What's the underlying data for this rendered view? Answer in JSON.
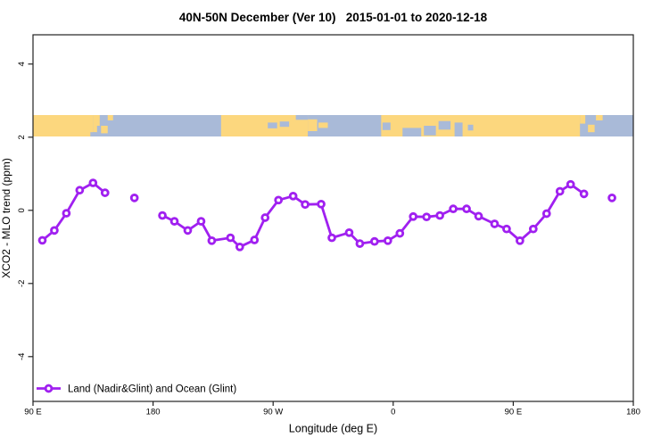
{
  "title": "40N-50N December (Ver 10)   2015-01-01 to 2020-12-18",
  "colors": {
    "series_purple": "#A020F0",
    "map_land": "#FCD77E",
    "map_ocean": "#A9BAD8",
    "axis": "#222222",
    "background": "#ffffff"
  },
  "chart_data": {
    "type": "line",
    "title": "40N-50N December (Ver 10)   2015-01-01 to 2020-12-18",
    "xlabel": "Longitude (deg E)",
    "ylabel": "XCO2 - MLO trend (ppm)",
    "x_axis": {
      "tick_labels": [
        "90 E",
        "180",
        "90 W",
        "0",
        "90 E",
        "180"
      ],
      "tick_offsets_deg": [
        0,
        90,
        180,
        270,
        360,
        450
      ],
      "note": "longitude axis wraps eastward: 90E to 180 to 90W to 0 to 90E to 180"
    },
    "y_axis": {
      "ticks": [
        -4,
        -2,
        0,
        2,
        4
      ],
      "range": [
        -5.2,
        4.8
      ],
      "grid": false
    },
    "legend": {
      "label": "Land (Nadir&Glint) and Ocean (Glint)",
      "position": "bottom-left"
    },
    "series": [
      {
        "name": "Land (Nadir&Glint) and Ocean (Glint)",
        "marker": "open-circle",
        "segments": [
          [
            [
              7,
              -0.82
            ],
            [
              16,
              -0.55
            ],
            [
              25,
              -0.08
            ],
            [
              35,
              0.55
            ],
            [
              45,
              0.75
            ],
            [
              54,
              0.48
            ]
          ],
          [
            [
              97,
              -0.14
            ],
            [
              106,
              -0.3
            ],
            [
              116,
              -0.55
            ],
            [
              126,
              -0.3
            ],
            [
              134,
              -0.83
            ],
            [
              148,
              -0.75
            ],
            [
              155,
              -1.0
            ],
            [
              166,
              -0.81
            ],
            [
              174,
              -0.2
            ],
            [
              184,
              0.28
            ],
            [
              195,
              0.39
            ],
            [
              204,
              0.16
            ],
            [
              216,
              0.17
            ],
            [
              224,
              -0.75
            ],
            [
              237,
              -0.61
            ],
            [
              245,
              -0.91
            ],
            [
              256,
              -0.85
            ],
            [
              266,
              -0.83
            ],
            [
              275,
              -0.63
            ],
            [
              285,
              -0.17
            ],
            [
              295,
              -0.18
            ],
            [
              305,
              -0.14
            ],
            [
              315,
              0.04
            ],
            [
              325,
              0.04
            ],
            [
              334,
              -0.16
            ],
            [
              346,
              -0.37
            ],
            [
              355,
              -0.51
            ],
            [
              365,
              -0.83
            ],
            [
              375,
              -0.51
            ],
            [
              385,
              -0.09
            ],
            [
              395,
              0.52
            ],
            [
              403,
              0.71
            ],
            [
              413,
              0.45
            ]
          ]
        ],
        "isolated_points": [
          [
            76,
            0.34
          ],
          [
            434,
            0.34
          ]
        ]
      }
    ],
    "map_strip": {
      "description": "world coastline band at 40N-50N shown between y=2.05 and y=2.6",
      "value_top": 2.6,
      "value_bottom": 2.05,
      "land_rects": [
        [
          0,
          45,
          0,
          1
        ],
        [
          45,
          50,
          0,
          0.5
        ],
        [
          45,
          48,
          0.5,
          0.8
        ],
        [
          51,
          56,
          0.5,
          0.85
        ],
        [
          56,
          60,
          0,
          0.25
        ],
        [
          141,
          206,
          0,
          1
        ],
        [
          206,
          213,
          0.2,
          0.75
        ],
        [
          214,
          221,
          0.35,
          0.6
        ],
        [
          261,
          410,
          0,
          1
        ],
        [
          410,
          414,
          0,
          0.4
        ],
        [
          416,
          421,
          0.45,
          0.8
        ],
        [
          422,
          427,
          0,
          0.25
        ]
      ],
      "sea_rects": [
        [
          43,
          47,
          0.8,
          1
        ],
        [
          176,
          183,
          0.35,
          0.62
        ],
        [
          185,
          192,
          0.3,
          0.55
        ],
        [
          197,
          206,
          0,
          0.22
        ],
        [
          262,
          268,
          0.35,
          0.7
        ],
        [
          277,
          291,
          0.6,
          1
        ],
        [
          293,
          302,
          0.5,
          0.95
        ],
        [
          304,
          313,
          0.28,
          0.68
        ],
        [
          316,
          322,
          0.35,
          1
        ],
        [
          326,
          330,
          0.45,
          0.72
        ]
      ]
    }
  }
}
